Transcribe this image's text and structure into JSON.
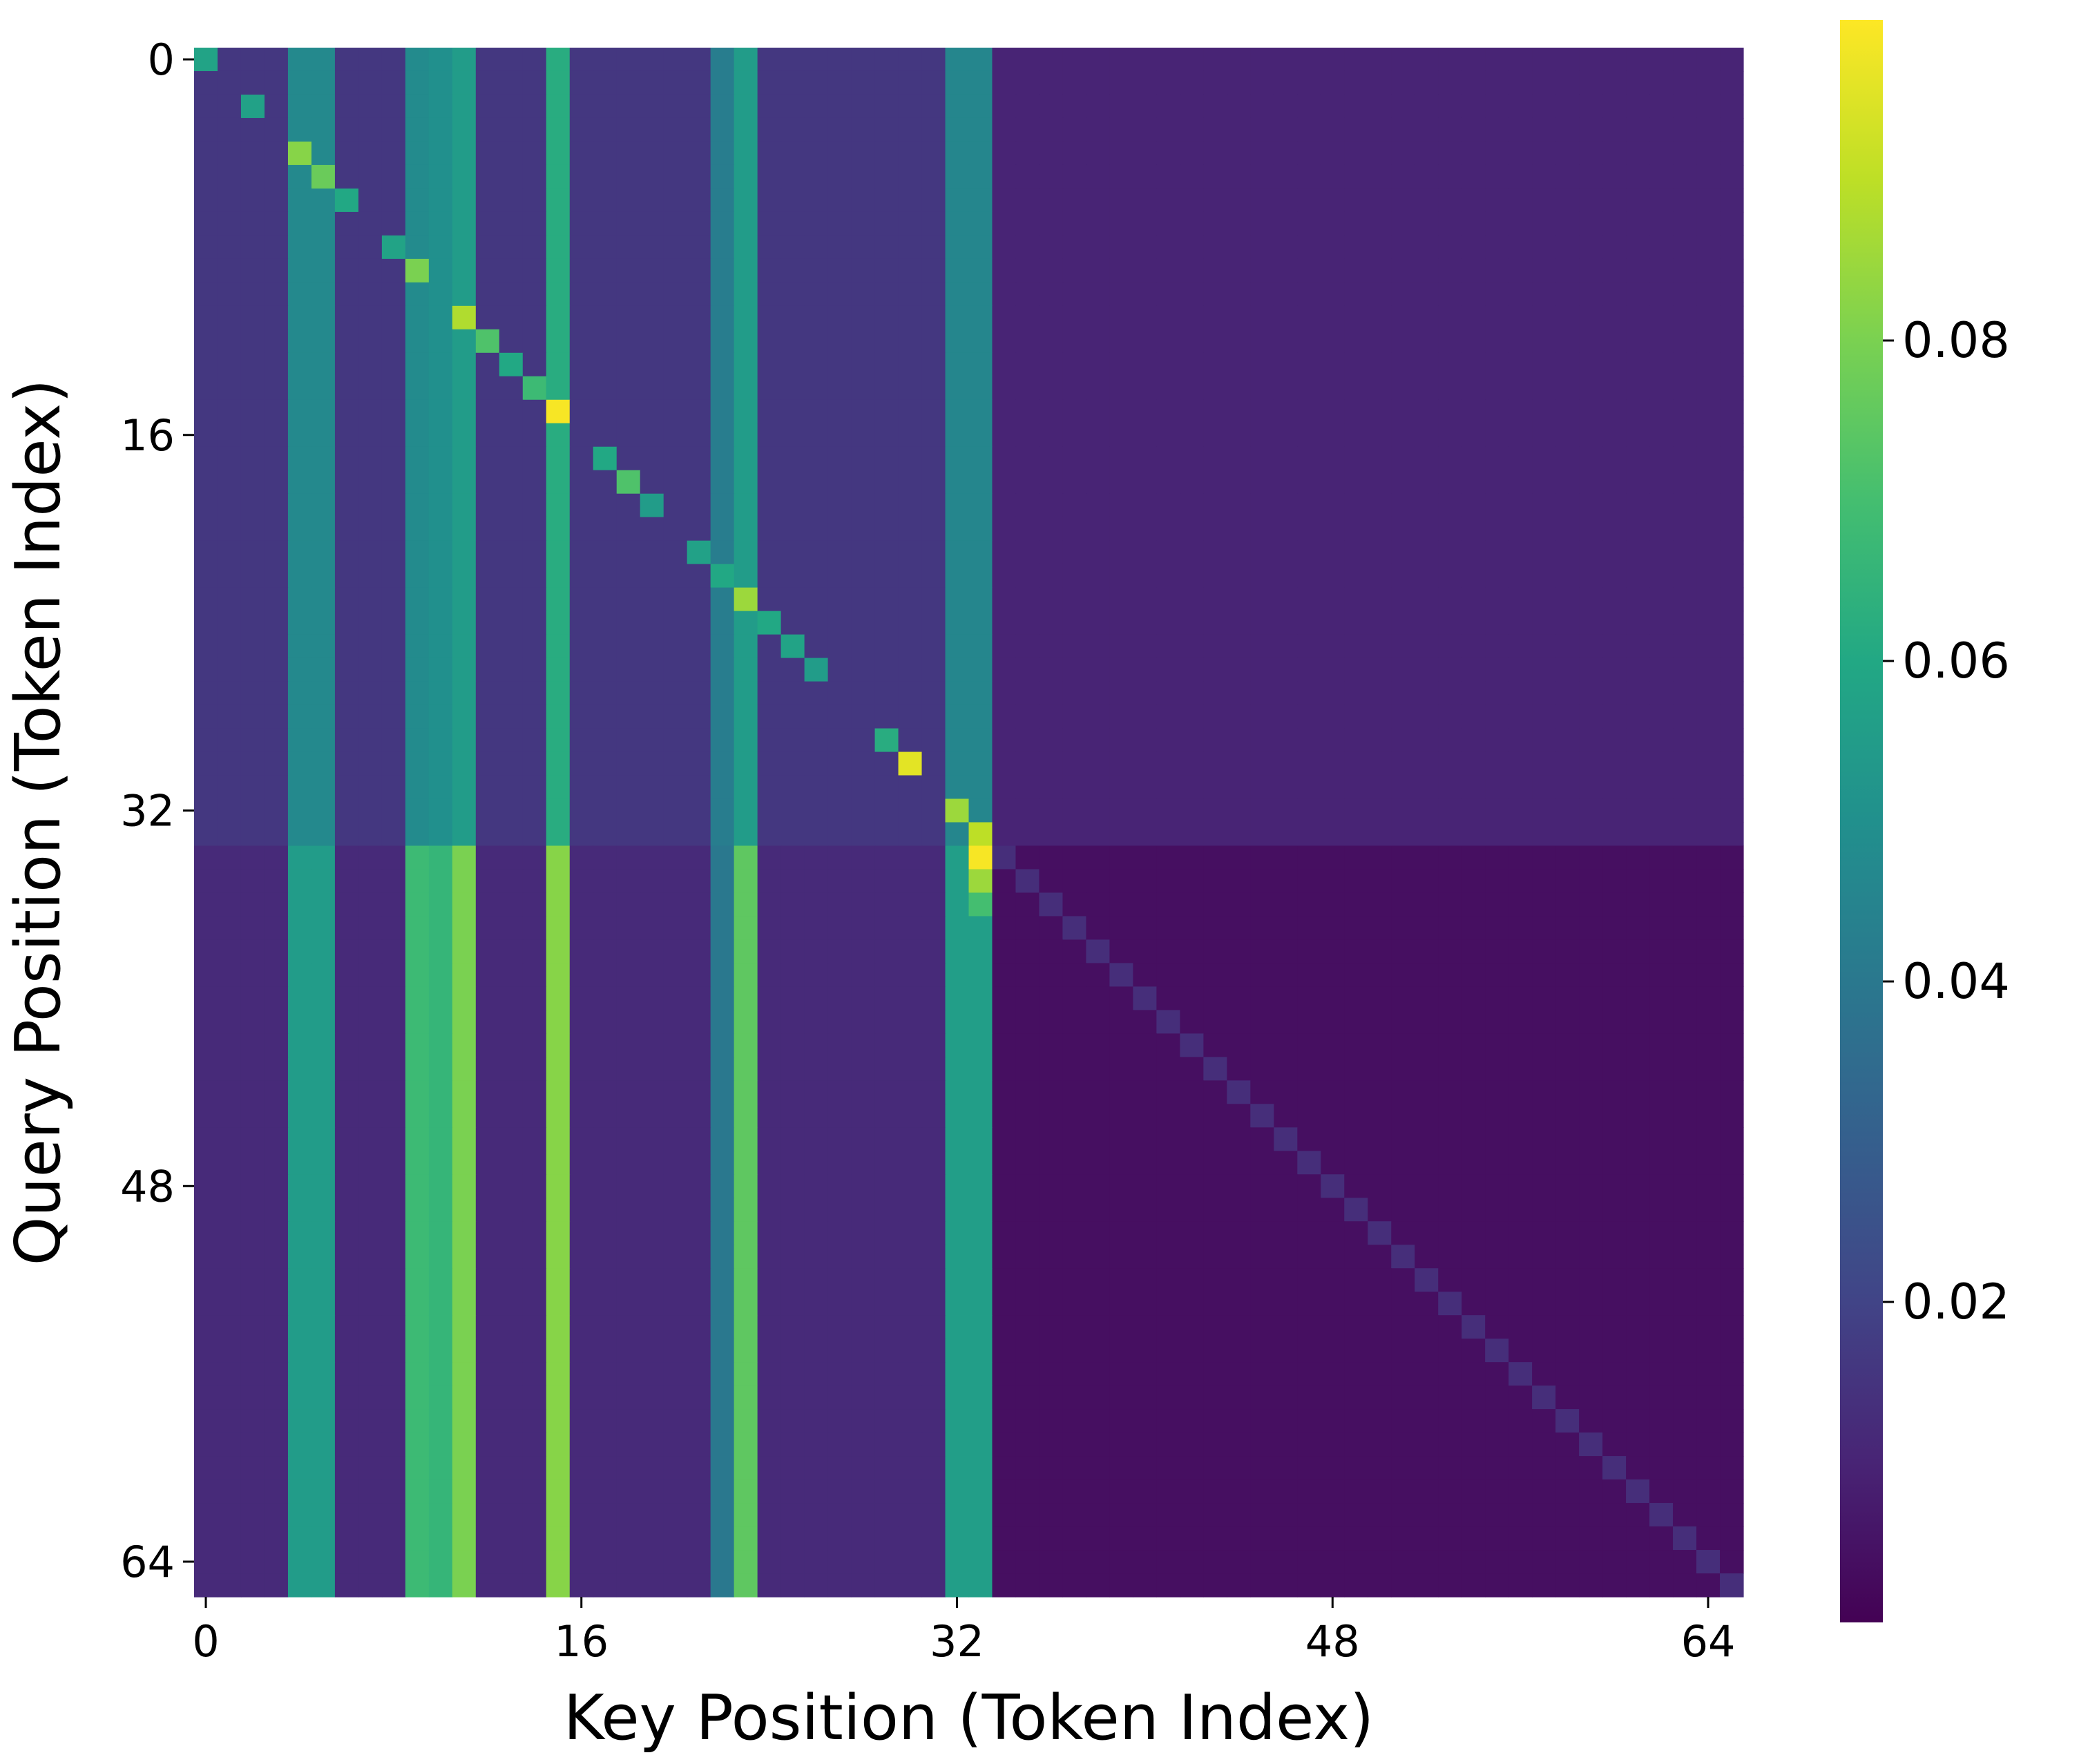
{
  "chart_data": {
    "type": "heatmap",
    "title": "",
    "xlabel": "Key Position (Token Index)",
    "ylabel": "Query Position (Token Index)",
    "n_rows": 66,
    "n_cols": 66,
    "x_ticks": [
      0,
      16,
      32,
      48,
      64
    ],
    "y_ticks": [
      0,
      16,
      32,
      48,
      64
    ],
    "colormap": "viridis",
    "color_range": [
      0.0,
      0.1
    ],
    "colorbar_ticks": [
      0.02,
      0.04,
      0.06,
      0.08
    ],
    "colorbar_tick_labels": [
      "0.02",
      "0.04",
      "0.06",
      "0.08"
    ],
    "structure": {
      "sink_columns_in_prefix_rows_0_33": [
        {
          "col": 4,
          "value": 0.047
        },
        {
          "col": 5,
          "value": 0.047
        },
        {
          "col": 9,
          "value": 0.048
        },
        {
          "col": 10,
          "value": 0.05
        },
        {
          "col": 11,
          "value": 0.055
        },
        {
          "col": 15,
          "value": 0.062
        },
        {
          "col": 22,
          "value": 0.042
        },
        {
          "col": 23,
          "value": 0.055
        },
        {
          "col": 32,
          "value": 0.046
        },
        {
          "col": 33,
          "value": 0.046
        }
      ],
      "sink_columns_in_suffix_rows_34_65": [
        {
          "col": 4,
          "value": 0.055
        },
        {
          "col": 5,
          "value": 0.055
        },
        {
          "col": 9,
          "value": 0.068
        },
        {
          "col": 10,
          "value": 0.066
        },
        {
          "col": 11,
          "value": 0.08
        },
        {
          "col": 15,
          "value": 0.082
        },
        {
          "col": 22,
          "value": 0.04
        },
        {
          "col": 23,
          "value": 0.075
        },
        {
          "col": 32,
          "value": 0.056
        },
        {
          "col": 33,
          "value": 0.056
        }
      ],
      "right_block_value_prefix_rows": 0.01,
      "right_block_value_suffix_rows": 0.004,
      "diagonal_value_suffix_rows": 0.013,
      "prefix_diagonal_cells": [
        {
          "row": 0,
          "col": 0,
          "value": 0.058
        },
        {
          "row": 2,
          "col": 2,
          "value": 0.057
        },
        {
          "row": 4,
          "col": 4,
          "value": 0.082
        },
        {
          "row": 5,
          "col": 5,
          "value": 0.077
        },
        {
          "row": 6,
          "col": 6,
          "value": 0.06
        },
        {
          "row": 8,
          "col": 8,
          "value": 0.058
        },
        {
          "row": 9,
          "col": 9,
          "value": 0.08
        },
        {
          "row": 11,
          "col": 11,
          "value": 0.088
        },
        {
          "row": 12,
          "col": 12,
          "value": 0.072
        },
        {
          "row": 13,
          "col": 13,
          "value": 0.06
        },
        {
          "row": 14,
          "col": 14,
          "value": 0.068
        },
        {
          "row": 15,
          "col": 15,
          "value": 0.099
        },
        {
          "row": 17,
          "col": 17,
          "value": 0.06
        },
        {
          "row": 18,
          "col": 18,
          "value": 0.072
        },
        {
          "row": 19,
          "col": 19,
          "value": 0.055
        },
        {
          "row": 21,
          "col": 21,
          "value": 0.057
        },
        {
          "row": 22,
          "col": 22,
          "value": 0.06
        },
        {
          "row": 23,
          "col": 23,
          "value": 0.085
        },
        {
          "row": 24,
          "col": 24,
          "value": 0.06
        },
        {
          "row": 25,
          "col": 25,
          "value": 0.058
        },
        {
          "row": 26,
          "col": 26,
          "value": 0.055
        },
        {
          "row": 29,
          "col": 29,
          "value": 0.062
        },
        {
          "row": 30,
          "col": 30,
          "value": 0.096
        },
        {
          "row": 32,
          "col": 32,
          "value": 0.085
        },
        {
          "row": 33,
          "col": 33,
          "value": 0.09
        },
        {
          "row": 34,
          "col": 33,
          "value": 0.099
        },
        {
          "row": 35,
          "col": 33,
          "value": 0.085
        },
        {
          "row": 36,
          "col": 33,
          "value": 0.07
        }
      ]
    }
  }
}
